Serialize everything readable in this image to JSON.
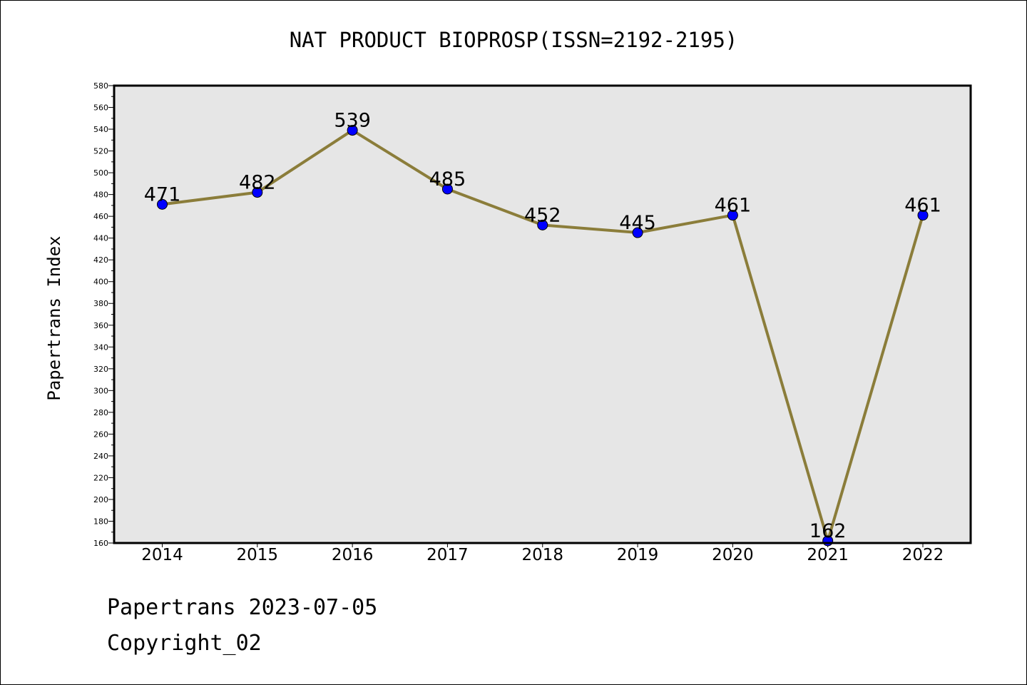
{
  "chart_data": {
    "type": "line",
    "title": "NAT PRODUCT BIOPROSP(ISSN=2192-2195)",
    "xlabel": "",
    "ylabel": "Papertrans Index",
    "categories": [
      "2014",
      "2015",
      "2016",
      "2017",
      "2018",
      "2019",
      "2020",
      "2021",
      "2022"
    ],
    "series": [
      {
        "values": [
          471,
          482,
          539,
          485,
          452,
          445,
          461,
          162,
          461
        ]
      }
    ],
    "data_labels": [
      "471",
      "482",
      "539",
      "485",
      "452",
      "445",
      "461",
      "162",
      "461"
    ],
    "ylim": [
      160,
      580
    ],
    "y_ticks": [
      160,
      180,
      200,
      220,
      240,
      260,
      280,
      300,
      320,
      340,
      360,
      380,
      400,
      420,
      440,
      460,
      480,
      500,
      520,
      540,
      560,
      580
    ],
    "y_tick_labels": [
      "160",
      "180",
      "200",
      "220",
      "240",
      "260",
      "280",
      "300",
      "320",
      "340",
      "360",
      "380",
      "400",
      "420",
      "440",
      "460",
      "480",
      "500",
      "520",
      "540",
      "560",
      "580"
    ],
    "grid": false,
    "colors": {
      "plot_background": "#e6e6e6",
      "line": "#8b7d3a",
      "marker": "#0000ff"
    }
  },
  "footer": {
    "date_line": "Papertrans 2023-07-05",
    "copyright_line": "Copyright_02"
  }
}
